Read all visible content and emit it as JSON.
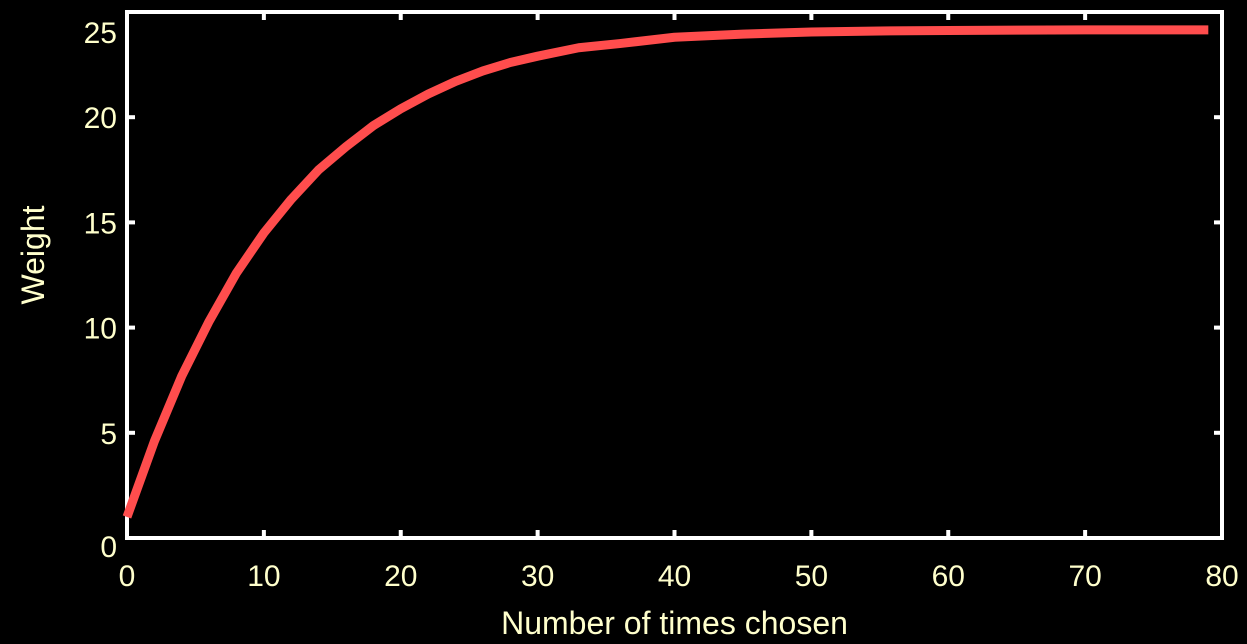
{
  "colors": {
    "background": "#000000",
    "axis": "#ffffff",
    "text": "#ffffcc",
    "series": "#ff4d4d"
  },
  "chart_data": {
    "type": "line",
    "title": "",
    "xlabel": "Number of times chosen",
    "ylabel": "Weight",
    "xlim": [
      0,
      80
    ],
    "ylim": [
      0,
      25
    ],
    "xticks": [
      0,
      10,
      20,
      30,
      40,
      50,
      60,
      70,
      80
    ],
    "yticks": [
      0,
      5,
      10,
      15,
      20,
      25
    ],
    "xtick_labels": [
      "0",
      "10",
      "20",
      "30",
      "40",
      "50",
      "60",
      "70",
      "80"
    ],
    "ytick_labels": [
      "0",
      "5",
      "10",
      "15",
      "20",
      "25"
    ],
    "grid": false,
    "legend": "none",
    "series": [
      {
        "x": [
          0,
          2,
          4,
          6,
          8,
          10,
          12,
          14,
          16,
          18,
          20,
          22,
          24,
          26,
          28,
          30,
          33,
          36,
          40,
          45,
          50,
          55,
          60,
          65,
          70,
          75,
          79
        ],
        "y": [
          1.0,
          4.6,
          7.7,
          10.3,
          12.6,
          14.5,
          16.1,
          17.5,
          18.6,
          19.6,
          20.4,
          21.1,
          21.7,
          22.2,
          22.6,
          22.9,
          23.3,
          23.5,
          23.8,
          23.95,
          24.05,
          24.1,
          24.12,
          24.14,
          24.15,
          24.15,
          24.15
        ]
      }
    ]
  }
}
